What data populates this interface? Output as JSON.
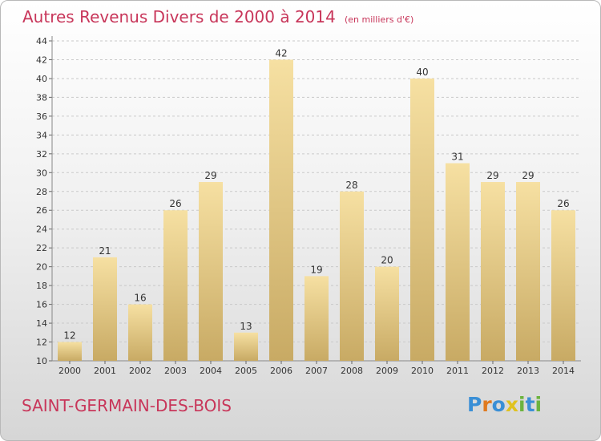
{
  "title": {
    "main": "Autres Revenus Divers de 2000 à 2014",
    "unit": "(en milliers d'€)"
  },
  "commune": "SAINT-GERMAIN-DES-BOIS",
  "logo": {
    "text": "Proxiti",
    "letters": [
      {
        "ch": "P",
        "color": "#3a8fd6"
      },
      {
        "ch": "r",
        "color": "#e07a1f"
      },
      {
        "ch": "o",
        "color": "#3a8fd6"
      },
      {
        "ch": "x",
        "color": "#e0c21f"
      },
      {
        "ch": "i",
        "color": "#6cb33e"
      },
      {
        "ch": "t",
        "color": "#3a8fd6"
      },
      {
        "ch": "i",
        "color": "#6cb33e"
      }
    ]
  },
  "colors": {
    "accent": "#c8365a",
    "bar_light": "#f4dc9c",
    "bar_dark": "#c8aa64",
    "axis_text": "#333333"
  },
  "chart_data": {
    "type": "bar",
    "categories": [
      "2000",
      "2001",
      "2002",
      "2003",
      "2004",
      "2005",
      "2006",
      "2007",
      "2008",
      "2009",
      "2010",
      "2011",
      "2012",
      "2013",
      "2014"
    ],
    "values": [
      12,
      21,
      16,
      26,
      29,
      13,
      42,
      19,
      28,
      20,
      40,
      31,
      29,
      29,
      26
    ],
    "ylim": [
      10,
      44
    ],
    "yticks": [
      10,
      12,
      14,
      16,
      18,
      20,
      22,
      24,
      26,
      28,
      30,
      32,
      34,
      36,
      38,
      40,
      42,
      44
    ],
    "grid": true,
    "xlabel": "",
    "ylabel": ""
  }
}
